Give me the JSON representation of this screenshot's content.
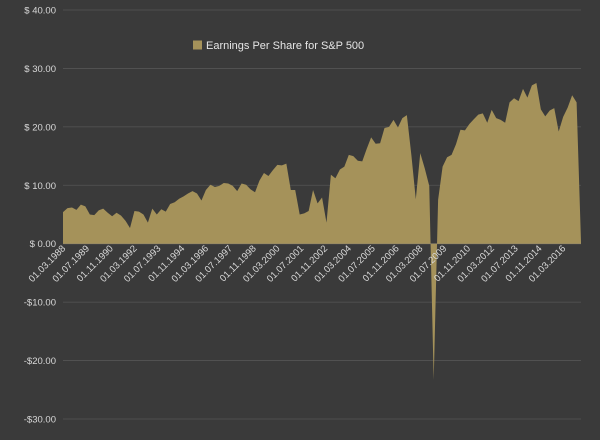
{
  "chart_data": {
    "type": "area",
    "legend": "top-center",
    "grid": true,
    "colors": {
      "area": "#a5925a",
      "background": "#3a3a3a",
      "text": "#d9d9d9",
      "grid": "#555555"
    },
    "ylim": [
      -30,
      40
    ],
    "yticks": [
      {
        "value": 40,
        "label": "$ 40.00"
      },
      {
        "value": 30,
        "label": "$ 30.00"
      },
      {
        "value": 20,
        "label": "$ 20.00"
      },
      {
        "value": 10,
        "label": "$ 10.00"
      },
      {
        "value": 0,
        "label": "$ 0.00"
      },
      {
        "value": -10,
        "label": "-$10.00"
      },
      {
        "value": -20,
        "label": "-$20.00"
      },
      {
        "value": -30,
        "label": "-$30.00"
      }
    ],
    "xlim": [
      "1988-03-01",
      "2017-03-01"
    ],
    "xticks": [
      {
        "date": "1988-03-01",
        "label": "01.03.1988"
      },
      {
        "date": "1989-07-01",
        "label": "01.07.1989"
      },
      {
        "date": "1990-11-01",
        "label": "01.11.1990"
      },
      {
        "date": "1992-03-01",
        "label": "01.03.1992"
      },
      {
        "date": "1993-07-01",
        "label": "01.07.1993"
      },
      {
        "date": "1994-11-01",
        "label": "01.11.1994"
      },
      {
        "date": "1996-03-01",
        "label": "01.03.1996"
      },
      {
        "date": "1997-07-01",
        "label": "01.07.1997"
      },
      {
        "date": "1998-11-01",
        "label": "01.11.1998"
      },
      {
        "date": "2000-03-01",
        "label": "01.03.2000"
      },
      {
        "date": "2001-07-01",
        "label": "01.07.2001"
      },
      {
        "date": "2002-11-01",
        "label": "01.11.2002"
      },
      {
        "date": "2004-03-01",
        "label": "01.03.2004"
      },
      {
        "date": "2005-07-01",
        "label": "01.07.2005"
      },
      {
        "date": "2006-11-01",
        "label": "01.11.2006"
      },
      {
        "date": "2008-03-01",
        "label": "01.03.2008"
      },
      {
        "date": "2009-07-01",
        "label": "01.07.2009"
      },
      {
        "date": "2010-11-01",
        "label": "01.11.2010"
      },
      {
        "date": "2012-03-01",
        "label": "01.03.2012"
      },
      {
        "date": "2013-07-01",
        "label": "01.07.2013"
      },
      {
        "date": "2014-11-01",
        "label": "01.11.2014"
      },
      {
        "date": "2016-03-01",
        "label": "01.03.2016"
      }
    ],
    "series": [
      {
        "name": "Earnings Per Share for S&P 500",
        "points": [
          [
            "1988-03-01",
            5.4
          ],
          [
            "1988-06-01",
            6.1
          ],
          [
            "1988-09-01",
            6.2
          ],
          [
            "1988-12-01",
            5.8
          ],
          [
            "1989-03-01",
            6.7
          ],
          [
            "1989-06-01",
            6.4
          ],
          [
            "1989-09-01",
            5.0
          ],
          [
            "1989-12-01",
            4.9
          ],
          [
            "1990-03-01",
            5.7
          ],
          [
            "1990-06-01",
            6.0
          ],
          [
            "1990-09-01",
            5.3
          ],
          [
            "1990-12-01",
            4.7
          ],
          [
            "1991-03-01",
            5.3
          ],
          [
            "1991-06-01",
            4.8
          ],
          [
            "1991-09-01",
            3.9
          ],
          [
            "1991-12-01",
            2.7
          ],
          [
            "1992-03-01",
            5.6
          ],
          [
            "1992-06-01",
            5.5
          ],
          [
            "1992-09-01",
            5.0
          ],
          [
            "1992-12-01",
            3.6
          ],
          [
            "1993-03-01",
            6.0
          ],
          [
            "1993-06-01",
            5.0
          ],
          [
            "1993-09-01",
            5.9
          ],
          [
            "1993-12-01",
            5.5
          ],
          [
            "1994-03-01",
            6.8
          ],
          [
            "1994-06-01",
            7.1
          ],
          [
            "1994-09-01",
            7.7
          ],
          [
            "1994-12-01",
            8.1
          ],
          [
            "1995-03-01",
            8.6
          ],
          [
            "1995-06-01",
            9.0
          ],
          [
            "1995-09-01",
            8.6
          ],
          [
            "1995-12-01",
            7.4
          ],
          [
            "1996-03-01",
            9.2
          ],
          [
            "1996-06-01",
            10.1
          ],
          [
            "1996-09-01",
            9.7
          ],
          [
            "1996-12-01",
            9.9
          ],
          [
            "1997-03-01",
            10.4
          ],
          [
            "1997-06-01",
            10.3
          ],
          [
            "1997-09-01",
            9.9
          ],
          [
            "1997-12-01",
            9.0
          ],
          [
            "1998-03-01",
            10.3
          ],
          [
            "1998-06-01",
            10.1
          ],
          [
            "1998-09-01",
            9.3
          ],
          [
            "1998-12-01",
            8.8
          ],
          [
            "1999-03-01",
            10.8
          ],
          [
            "1999-06-01",
            12.1
          ],
          [
            "1999-09-01",
            11.6
          ],
          [
            "1999-12-01",
            12.6
          ],
          [
            "2000-03-01",
            13.5
          ],
          [
            "2000-06-01",
            13.4
          ],
          [
            "2000-09-01",
            13.7
          ],
          [
            "2000-12-01",
            9.2
          ],
          [
            "2001-03-01",
            9.2
          ],
          [
            "2001-06-01",
            5.0
          ],
          [
            "2001-09-01",
            5.2
          ],
          [
            "2001-12-01",
            5.6
          ],
          [
            "2002-03-01",
            9.2
          ],
          [
            "2002-06-01",
            6.9
          ],
          [
            "2002-09-01",
            7.9
          ],
          [
            "2002-12-01",
            3.6
          ],
          [
            "2003-03-01",
            11.8
          ],
          [
            "2003-06-01",
            11.2
          ],
          [
            "2003-09-01",
            12.7
          ],
          [
            "2003-12-01",
            13.2
          ],
          [
            "2004-03-01",
            15.2
          ],
          [
            "2004-06-01",
            15.0
          ],
          [
            "2004-09-01",
            14.2
          ],
          [
            "2004-12-01",
            14.1
          ],
          [
            "2005-03-01",
            16.2
          ],
          [
            "2005-06-01",
            18.2
          ],
          [
            "2005-09-01",
            17.1
          ],
          [
            "2005-12-01",
            17.2
          ],
          [
            "2006-03-01",
            19.8
          ],
          [
            "2006-06-01",
            20.0
          ],
          [
            "2006-09-01",
            21.2
          ],
          [
            "2006-12-01",
            19.9
          ],
          [
            "2007-03-01",
            21.5
          ],
          [
            "2007-06-01",
            22.0
          ],
          [
            "2007-09-01",
            15.2
          ],
          [
            "2007-12-01",
            7.6
          ],
          [
            "2008-03-01",
            15.5
          ],
          [
            "2008-06-01",
            12.9
          ],
          [
            "2008-09-01",
            9.9
          ],
          [
            "2008-12-01",
            -23.3
          ],
          [
            "2009-03-01",
            7.5
          ],
          [
            "2009-06-01",
            13.2
          ],
          [
            "2009-09-01",
            14.8
          ],
          [
            "2009-12-01",
            15.2
          ],
          [
            "2010-03-01",
            17.0
          ],
          [
            "2010-06-01",
            19.5
          ],
          [
            "2010-09-01",
            19.4
          ],
          [
            "2010-12-01",
            20.5
          ],
          [
            "2011-03-01",
            21.3
          ],
          [
            "2011-06-01",
            22.1
          ],
          [
            "2011-09-01",
            22.3
          ],
          [
            "2011-12-01",
            20.7
          ],
          [
            "2012-03-01",
            22.9
          ],
          [
            "2012-06-01",
            21.5
          ],
          [
            "2012-09-01",
            21.2
          ],
          [
            "2012-12-01",
            20.7
          ],
          [
            "2013-03-01",
            24.2
          ],
          [
            "2013-06-01",
            24.9
          ],
          [
            "2013-09-01",
            24.4
          ],
          [
            "2013-12-01",
            26.5
          ],
          [
            "2014-03-01",
            25.0
          ],
          [
            "2014-06-01",
            27.1
          ],
          [
            "2014-09-01",
            27.5
          ],
          [
            "2014-12-01",
            23.0
          ],
          [
            "2015-03-01",
            21.8
          ],
          [
            "2015-06-01",
            22.8
          ],
          [
            "2015-09-01",
            23.2
          ],
          [
            "2015-12-01",
            19.2
          ],
          [
            "2016-03-01",
            21.7
          ],
          [
            "2016-06-01",
            23.3
          ],
          [
            "2016-09-01",
            25.4
          ],
          [
            "2016-12-01",
            24.2
          ],
          [
            "2017-03-01",
            0.3
          ]
        ]
      }
    ]
  }
}
